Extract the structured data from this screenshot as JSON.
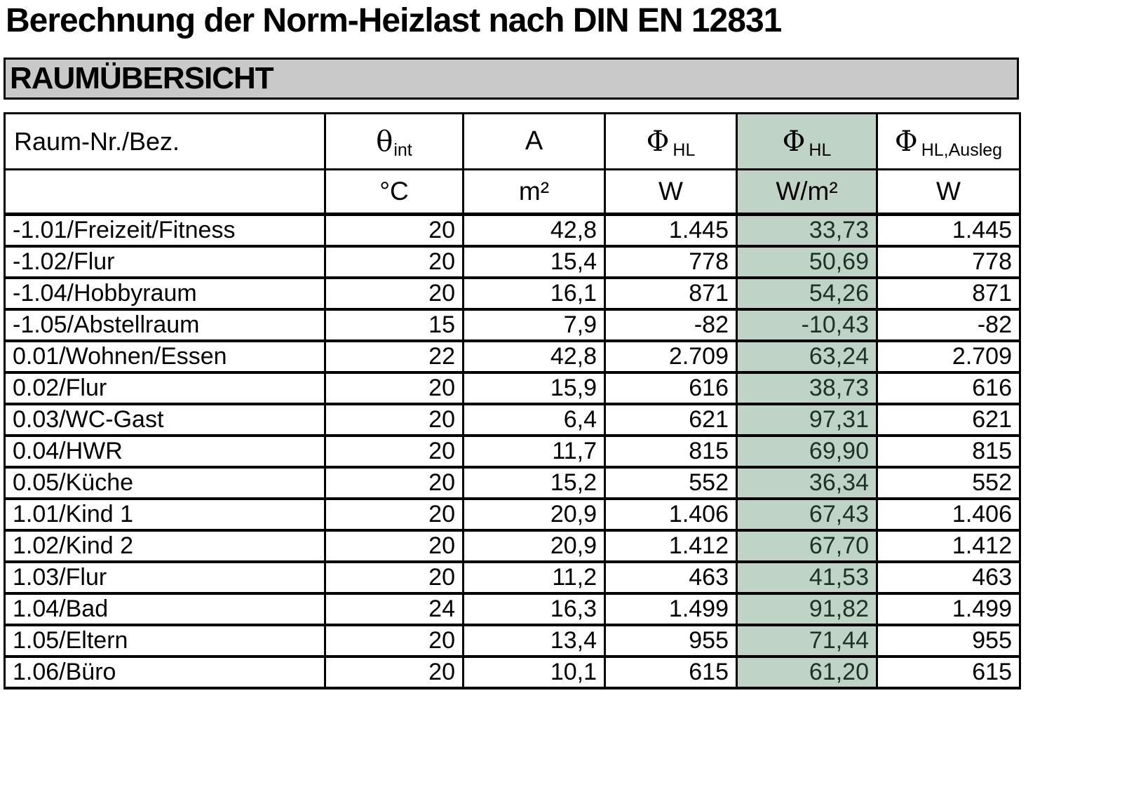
{
  "title": "Berechnung der Norm-Heizlast nach DIN EN 12831",
  "section_header": "RAUMÜBERSICHT",
  "colors": {
    "highlight_bg": "#bfd4c6",
    "highlight_text": "#1c3326",
    "banner_bg": "#c9c9c9",
    "border": "#000000"
  },
  "table": {
    "columns": [
      {
        "id": "room",
        "symbol": "Raum-Nr./Bez.",
        "sub": "",
        "unit": ""
      },
      {
        "id": "theta-int",
        "symbol": "θ",
        "sub": "int",
        "unit": "°C"
      },
      {
        "id": "area",
        "symbol": "A",
        "sub": "",
        "unit": "m²"
      },
      {
        "id": "phi-hl",
        "symbol": "Φ",
        "sub": "HL",
        "unit": "W"
      },
      {
        "id": "phi-hl-specific",
        "symbol": "Φ",
        "sub": "HL",
        "unit": "W/m²",
        "highlighted": true
      },
      {
        "id": "phi-hl-ausleg",
        "symbol": "Φ",
        "sub": "HL,Ausleg",
        "unit": "W"
      }
    ],
    "rows": [
      [
        "-1.01/Freizeit/Fitness",
        "20",
        "42,8",
        "1.445",
        "33,73",
        "1.445"
      ],
      [
        "-1.02/Flur",
        "20",
        "15,4",
        "778",
        "50,69",
        "778"
      ],
      [
        "-1.04/Hobbyraum",
        "20",
        "16,1",
        "871",
        "54,26",
        "871"
      ],
      [
        "-1.05/Abstellraum",
        "15",
        "7,9",
        "-82",
        "-10,43",
        "-82"
      ],
      [
        "0.01/Wohnen/Essen",
        "22",
        "42,8",
        "2.709",
        "63,24",
        "2.709"
      ],
      [
        "0.02/Flur",
        "20",
        "15,9",
        "616",
        "38,73",
        "616"
      ],
      [
        "0.03/WC-Gast",
        "20",
        "6,4",
        "621",
        "97,31",
        "621"
      ],
      [
        "0.04/HWR",
        "20",
        "11,7",
        "815",
        "69,90",
        "815"
      ],
      [
        "0.05/Küche",
        "20",
        "15,2",
        "552",
        "36,34",
        "552"
      ],
      [
        "1.01/Kind 1",
        "20",
        "20,9",
        "1.406",
        "67,43",
        "1.406"
      ],
      [
        "1.02/Kind 2",
        "20",
        "20,9",
        "1.412",
        "67,70",
        "1.412"
      ],
      [
        "1.03/Flur",
        "20",
        "11,2",
        "463",
        "41,53",
        "463"
      ],
      [
        "1.04/Bad",
        "24",
        "16,3",
        "1.499",
        "91,82",
        "1.499"
      ],
      [
        "1.05/Eltern",
        "20",
        "13,4",
        "955",
        "71,44",
        "955"
      ],
      [
        "1.06/Büro",
        "20",
        "10,1",
        "615",
        "61,20",
        "615"
      ]
    ]
  }
}
